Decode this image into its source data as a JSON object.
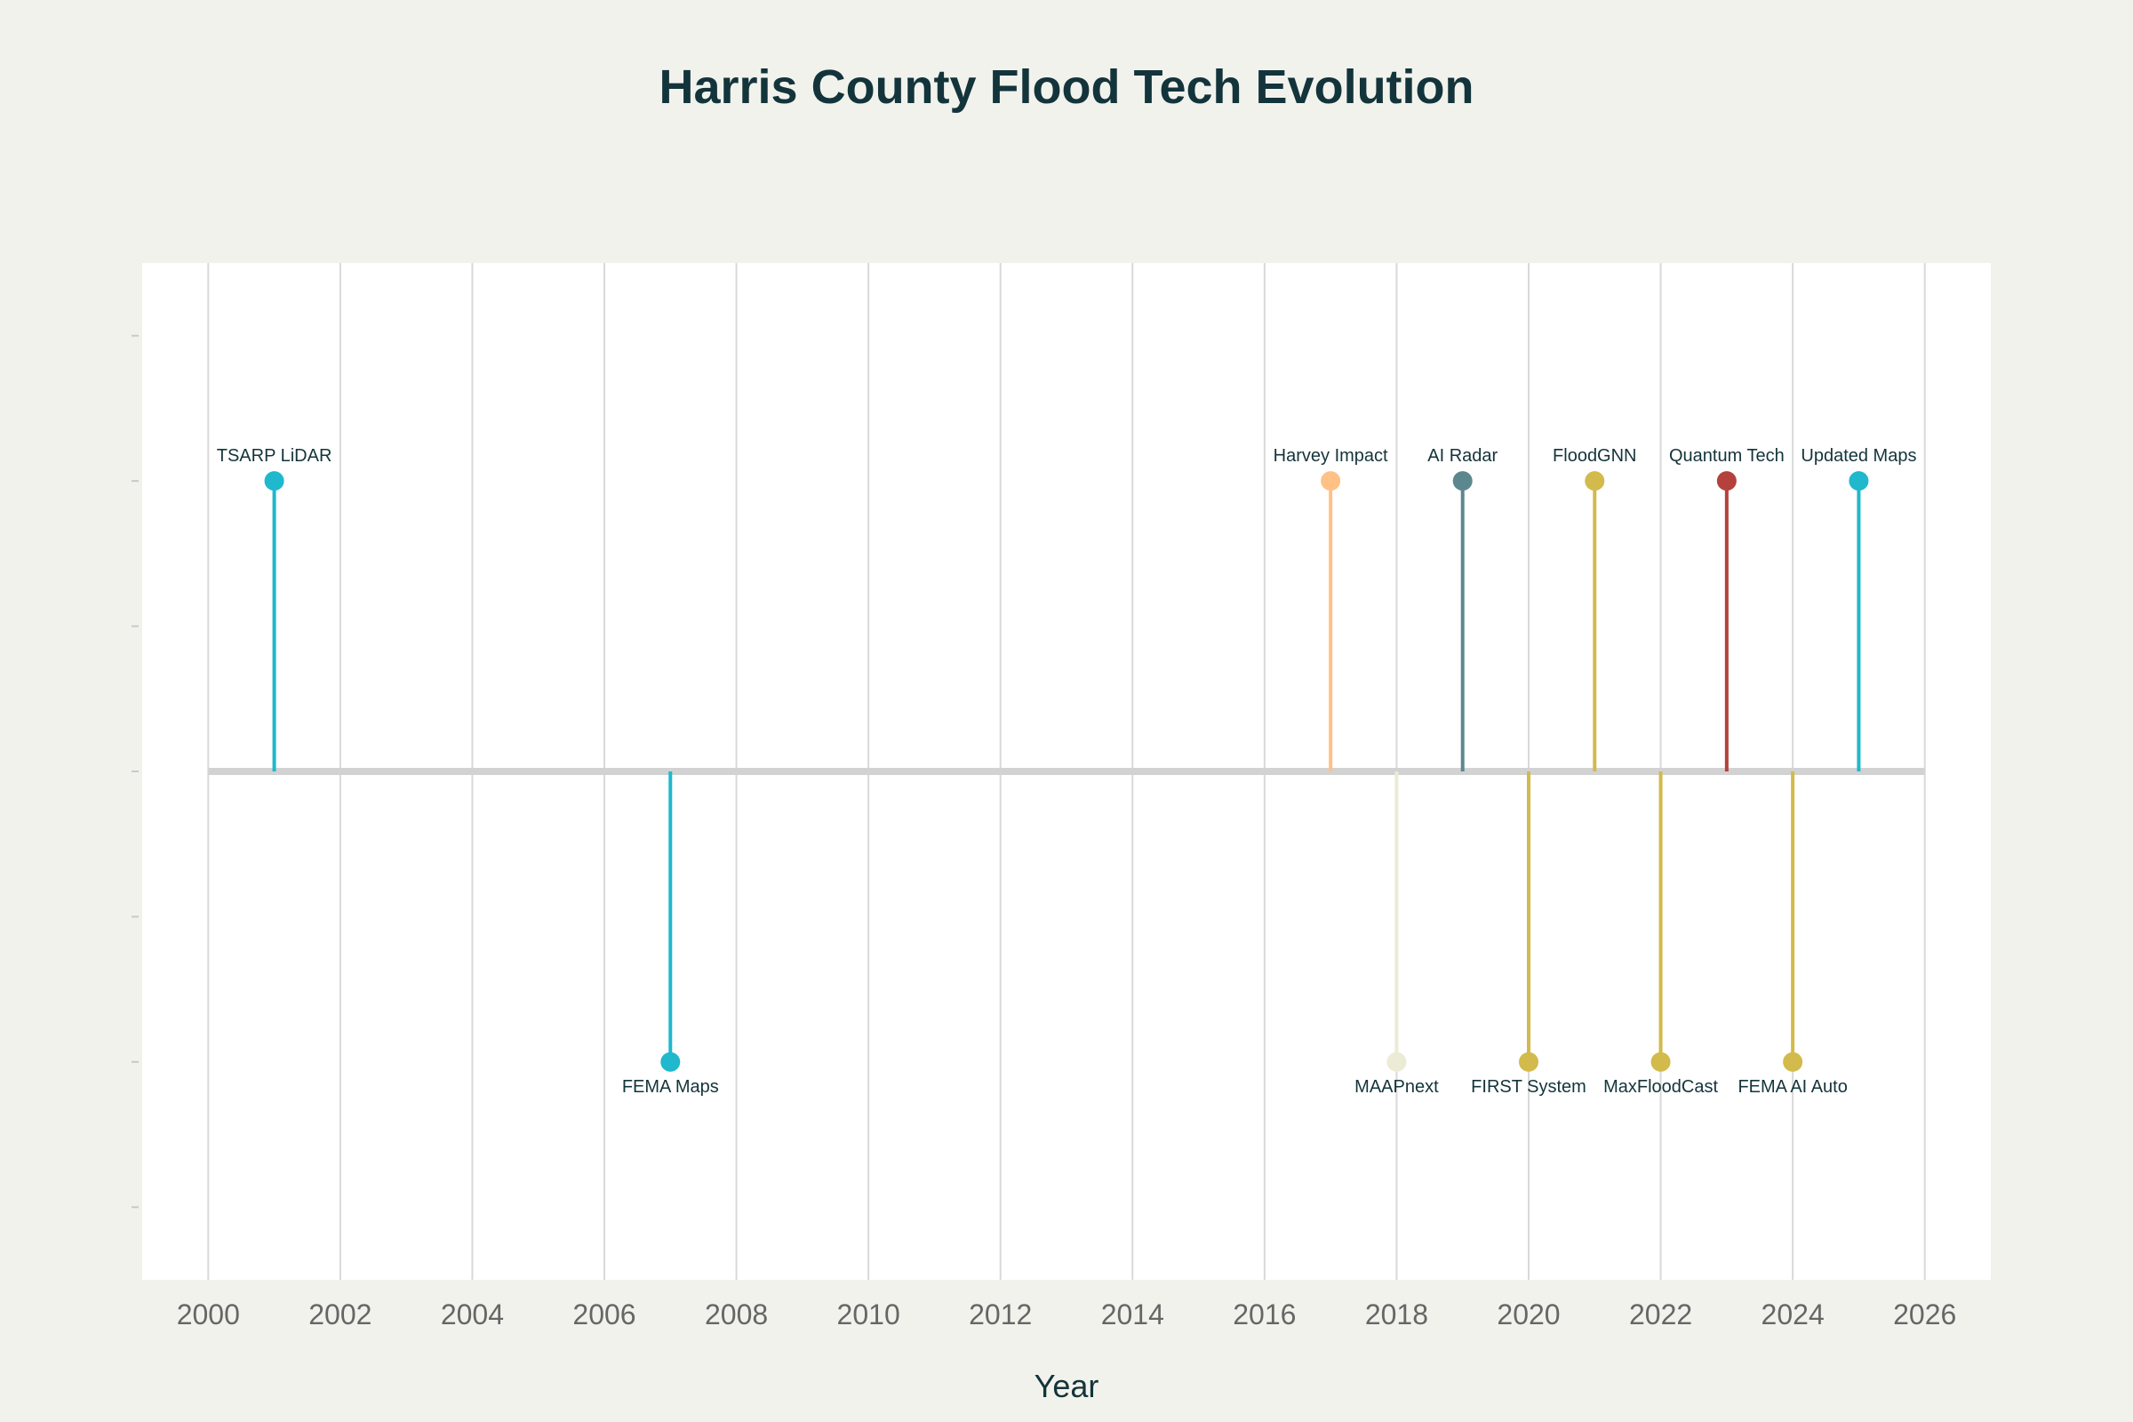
{
  "chart_data": {
    "type": "timeline",
    "title": "Harris County Flood Tech Evolution",
    "xlabel": "Year",
    "xlim": [
      1999,
      2027
    ],
    "ylim": [
      -3.5,
      3.5
    ],
    "x_ticks": [
      2000,
      2002,
      2004,
      2006,
      2008,
      2010,
      2012,
      2014,
      2016,
      2018,
      2020,
      2022,
      2024,
      2026
    ],
    "y_ticks": [
      -3,
      -2,
      -1,
      0,
      1,
      2,
      3
    ],
    "grid": true,
    "baseline_color": "#d2d2d2",
    "events": [
      {
        "year": 2001,
        "level": 2,
        "label": "TSARP LiDAR",
        "color": "#1fb8cd"
      },
      {
        "year": 2007,
        "level": -2,
        "label": "FEMA Maps",
        "color": "#1fb8cd"
      },
      {
        "year": 2017,
        "level": 2,
        "label": "Harvey Impact",
        "color": "#ffc185"
      },
      {
        "year": 2018,
        "level": -2,
        "label": "MAAPnext",
        "color": "#ecebd5"
      },
      {
        "year": 2019,
        "level": 2,
        "label": "AI Radar",
        "color": "#5d878f"
      },
      {
        "year": 2020,
        "level": -2,
        "label": "FIRST System",
        "color": "#d2ba4c"
      },
      {
        "year": 2021,
        "level": 2,
        "label": "FloodGNN",
        "color": "#d2ba4c"
      },
      {
        "year": 2022,
        "level": -2,
        "label": "MaxFloodCast",
        "color": "#d2ba4c"
      },
      {
        "year": 2023,
        "level": 2,
        "label": "Quantum Tech",
        "color": "#b4413c"
      },
      {
        "year": 2024,
        "level": -2,
        "label": "FEMA AI Auto",
        "color": "#d2ba4c"
      },
      {
        "year": 2025,
        "level": 2,
        "label": "Updated Maps",
        "color": "#1fb8cd"
      }
    ]
  }
}
